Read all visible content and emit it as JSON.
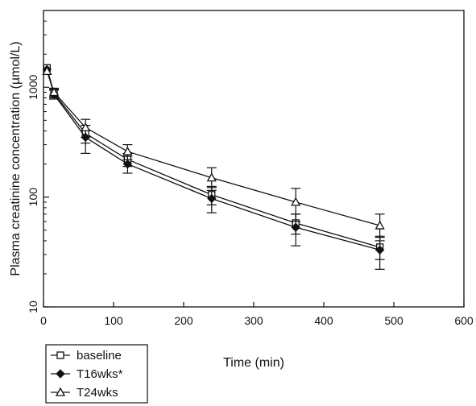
{
  "chart_data": {
    "type": "line",
    "title": "",
    "xlabel": "Time (min)",
    "ylabel": "Plasma creatinine concentration (µmol/L)",
    "xlim": [
      0,
      600
    ],
    "ylim": [
      10,
      5000
    ],
    "yscale": "log",
    "grid": false,
    "legend_position": "bottom-left",
    "x_ticks": [
      0,
      100,
      200,
      300,
      400,
      500,
      600
    ],
    "y_ticks": [
      10,
      100,
      1000
    ],
    "x": [
      5,
      15,
      60,
      120,
      240,
      360,
      480
    ],
    "series": [
      {
        "name": "baseline",
        "marker": "open-square",
        "values": [
          1500,
          880,
          380,
          220,
          105,
          58,
          35
        ],
        "error": [
          0,
          80,
          70,
          30,
          20,
          12,
          8
        ]
      },
      {
        "name": "T16wks*",
        "marker": "filled-diamond",
        "values": [
          1450,
          860,
          350,
          200,
          97,
          53,
          33
        ],
        "error": [
          0,
          80,
          100,
          35,
          25,
          17,
          11
        ]
      },
      {
        "name": "T24wks",
        "marker": "open-triangle",
        "values": [
          1400,
          900,
          430,
          260,
          150,
          90,
          55
        ],
        "error": [
          0,
          80,
          80,
          40,
          35,
          30,
          15
        ]
      }
    ]
  }
}
